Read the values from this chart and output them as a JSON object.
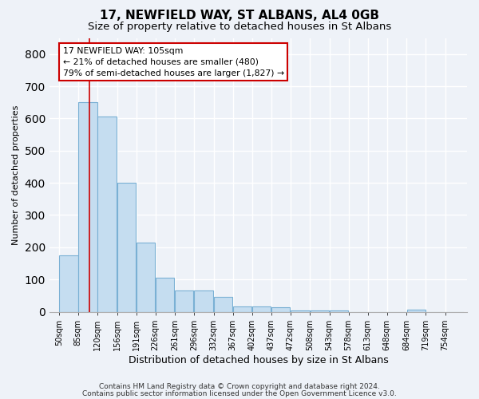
{
  "title1": "17, NEWFIELD WAY, ST ALBANS, AL4 0GB",
  "title2": "Size of property relative to detached houses in St Albans",
  "xlabel": "Distribution of detached houses by size in St Albans",
  "ylabel": "Number of detached properties",
  "bar_values": [
    175,
    650,
    605,
    400,
    215,
    105,
    65,
    65,
    47,
    16,
    15,
    13,
    5,
    5,
    5,
    0,
    0,
    0,
    7,
    0,
    0
  ],
  "bin_edges": [
    50,
    85,
    120,
    156,
    191,
    226,
    261,
    296,
    332,
    367,
    402,
    437,
    472,
    508,
    543,
    578,
    613,
    648,
    684,
    719,
    754,
    789
  ],
  "bin_labels": [
    "50sqm",
    "85sqm",
    "120sqm",
    "156sqm",
    "191sqm",
    "226sqm",
    "261sqm",
    "296sqm",
    "332sqm",
    "367sqm",
    "402sqm",
    "437sqm",
    "472sqm",
    "508sqm",
    "543sqm",
    "578sqm",
    "613sqm",
    "648sqm",
    "684sqm",
    "719sqm",
    "754sqm"
  ],
  "bar_color": "#c5ddf0",
  "bar_edge_color": "#7ab0d4",
  "red_line_x": 105,
  "annotation_line1": "17 NEWFIELD WAY: 105sqm",
  "annotation_line2": "← 21% of detached houses are smaller (480)",
  "annotation_line3": "79% of semi-detached houses are larger (1,827) →",
  "annotation_box_color": "#ffffff",
  "annotation_box_edge": "#cc0000",
  "ylim": [
    0,
    850
  ],
  "yticks": [
    0,
    100,
    200,
    300,
    400,
    500,
    600,
    700,
    800
  ],
  "footer1": "Contains HM Land Registry data © Crown copyright and database right 2024.",
  "footer2": "Contains public sector information licensed under the Open Government Licence v3.0.",
  "bg_color": "#eef2f8",
  "grid_color": "#ffffff",
  "title1_fontsize": 11,
  "title2_fontsize": 9.5
}
